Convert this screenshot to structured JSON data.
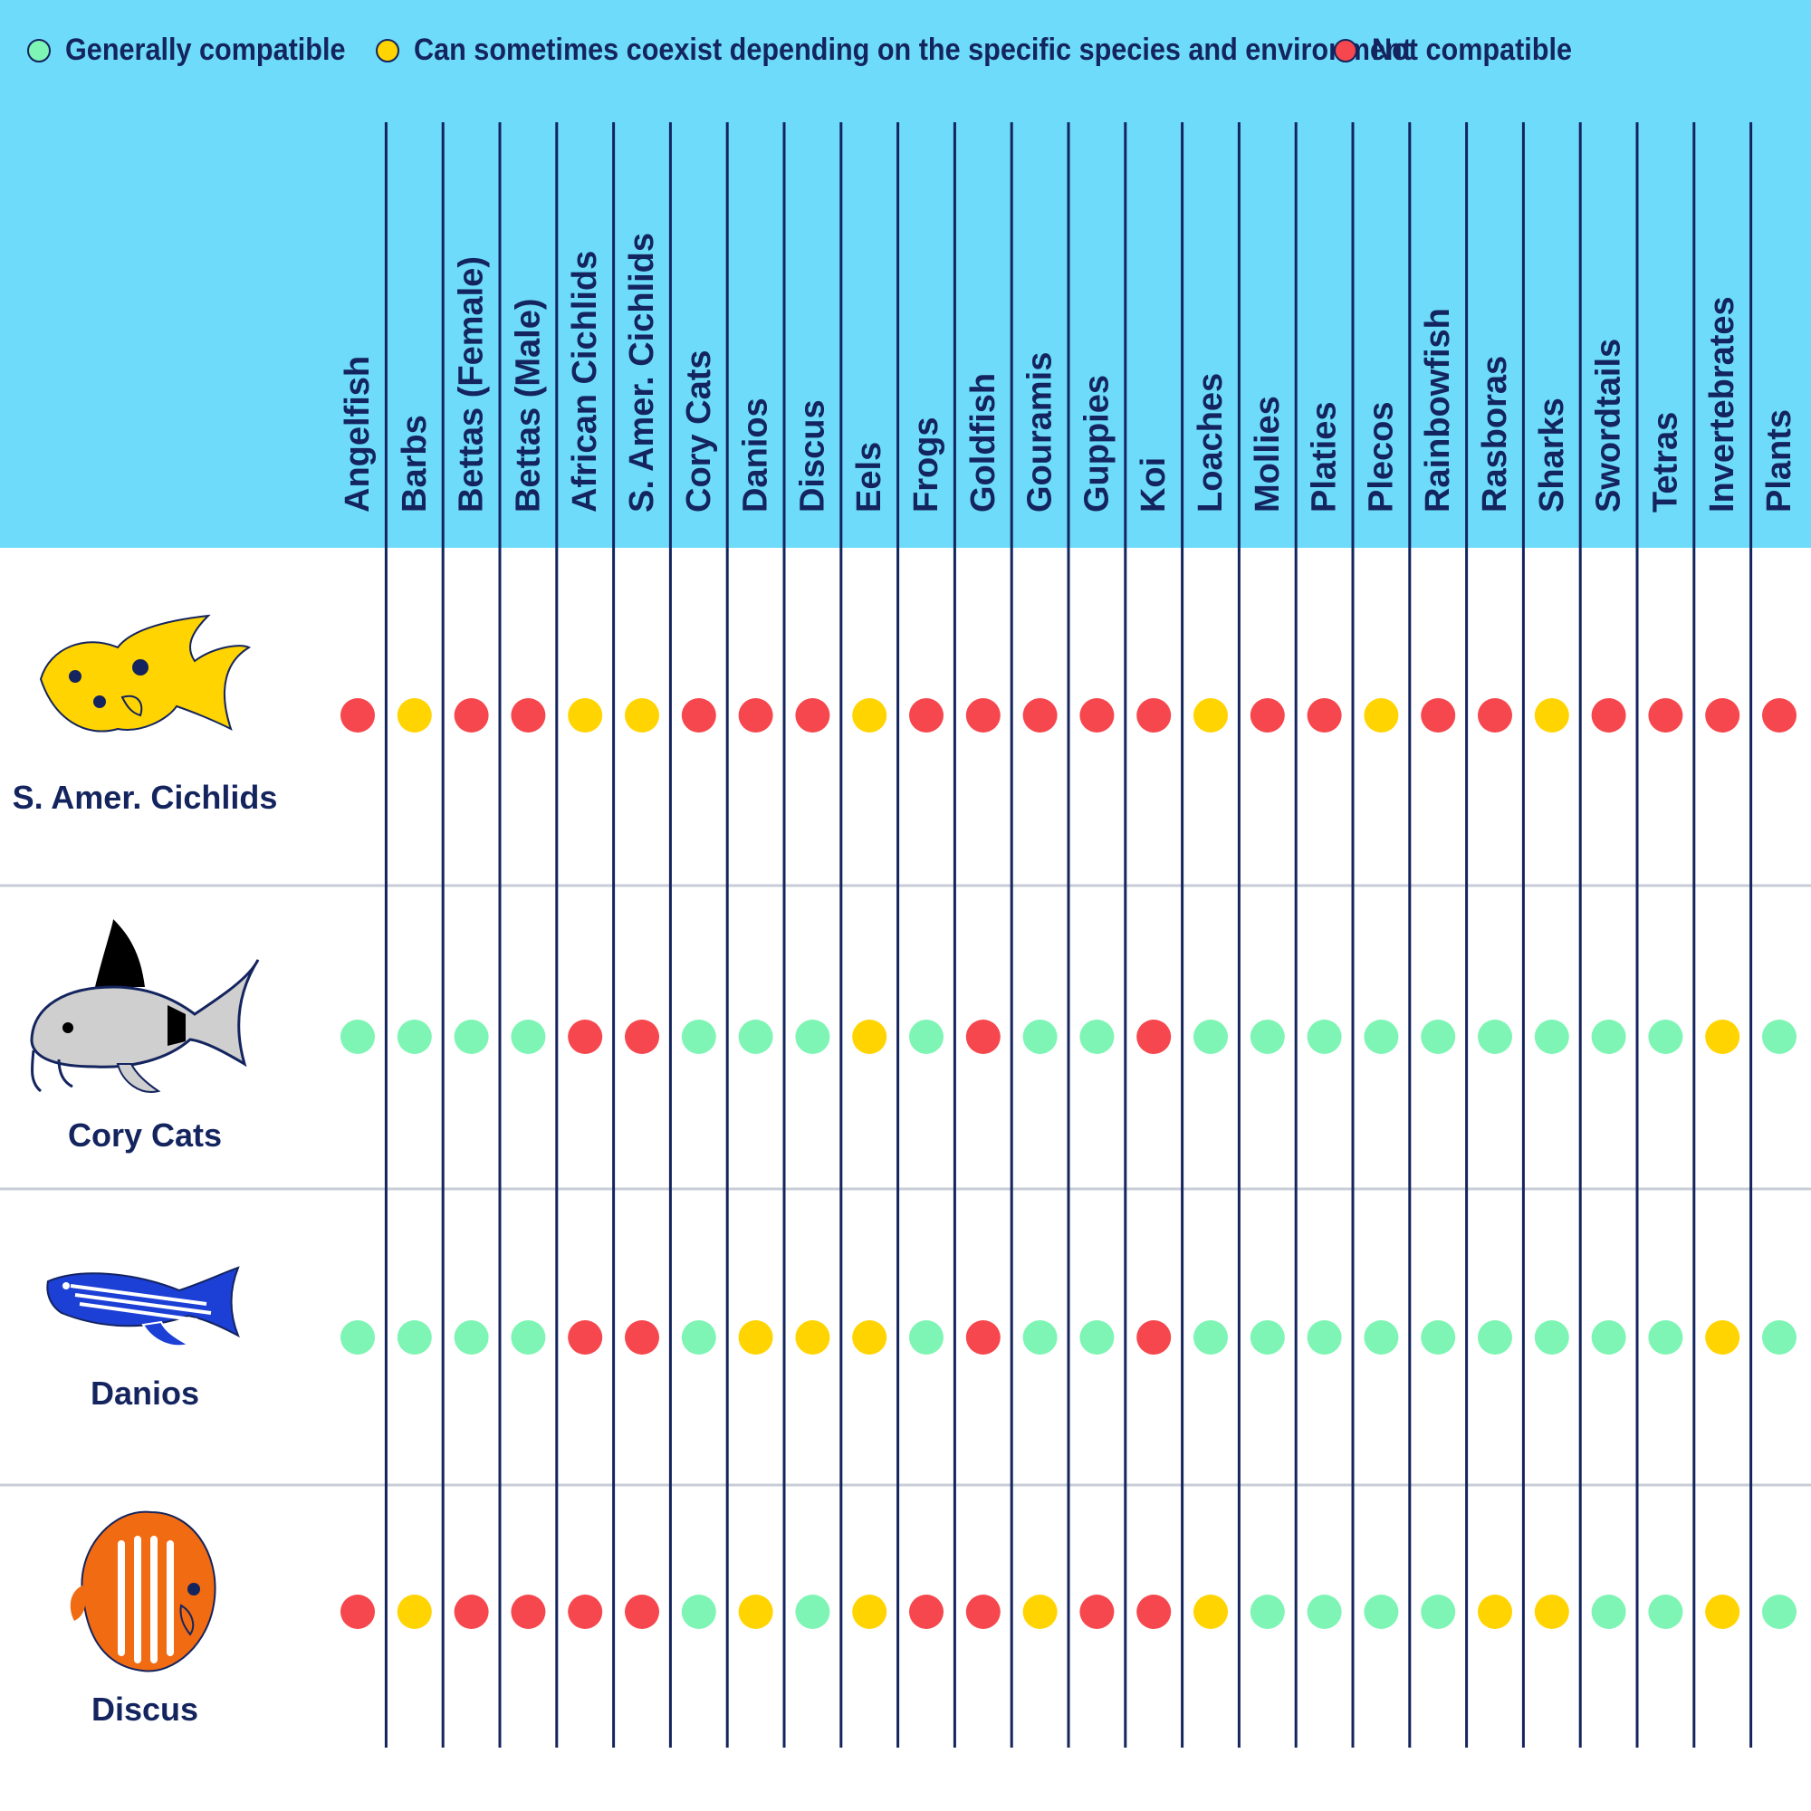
{
  "legend": [
    {
      "label": "Generally compatible",
      "color": "#7ef5b4"
    },
    {
      "label": "Can sometimes coexist depending on the specific species and environment",
      "color": "#ffd400"
    },
    {
      "label": "Not compatible",
      "color": "#f5474d"
    }
  ],
  "colors": {
    "header_bg": "#6ddbf9",
    "line": "#14245e",
    "separator": "#c7ccd6",
    "G": "#7ef5b4",
    "Y": "#ffd400",
    "R": "#f5474d"
  },
  "chart_data": {
    "type": "table",
    "value_key": {
      "G": "Generally compatible",
      "Y": "Can sometimes coexist depending on the specific species and environment",
      "R": "Not compatible"
    },
    "columns": [
      "Angelfish",
      "Barbs",
      "Bettas (Female)",
      "Bettas (Male)",
      "African Cichlids",
      "S. Amer. Cichlids",
      "Cory Cats",
      "Danios",
      "Discus",
      "Eels",
      "Frogs",
      "Goldfish",
      "Gouramis",
      "Guppies",
      "Koi",
      "Loaches",
      "Mollies",
      "Platies",
      "Plecos",
      "Rainbowfish",
      "Rasboras",
      "Sharks",
      "Swordtails",
      "Tetras",
      "Invertebrates",
      "Plants"
    ],
    "rows": [
      {
        "name": "S. Amer. Cichlids",
        "icon": "yellow-cichlid-fish-icon",
        "values": [
          "R",
          "Y",
          "R",
          "R",
          "Y",
          "Y",
          "R",
          "R",
          "R",
          "Y",
          "R",
          "R",
          "R",
          "R",
          "R",
          "Y",
          "R",
          "R",
          "Y",
          "R",
          "R",
          "Y",
          "R",
          "R",
          "R",
          "R"
        ]
      },
      {
        "name": "Cory Cats",
        "icon": "cory-catfish-icon",
        "values": [
          "G",
          "G",
          "G",
          "G",
          "R",
          "R",
          "G",
          "G",
          "G",
          "Y",
          "G",
          "R",
          "G",
          "G",
          "R",
          "G",
          "G",
          "G",
          "G",
          "G",
          "G",
          "G",
          "G",
          "G",
          "Y",
          "G"
        ]
      },
      {
        "name": "Danios",
        "icon": "blue-danio-fish-icon",
        "values": [
          "G",
          "G",
          "G",
          "G",
          "R",
          "R",
          "G",
          "Y",
          "Y",
          "Y",
          "G",
          "R",
          "G",
          "G",
          "R",
          "G",
          "G",
          "G",
          "G",
          "G",
          "G",
          "G",
          "G",
          "G",
          "Y",
          "G"
        ]
      },
      {
        "name": "Discus",
        "icon": "orange-discus-fish-icon",
        "values": [
          "R",
          "Y",
          "R",
          "R",
          "R",
          "R",
          "G",
          "Y",
          "G",
          "Y",
          "R",
          "R",
          "Y",
          "R",
          "R",
          "Y",
          "G",
          "G",
          "G",
          "G",
          "Y",
          "Y",
          "G",
          "G",
          "Y",
          "G"
        ]
      }
    ]
  }
}
